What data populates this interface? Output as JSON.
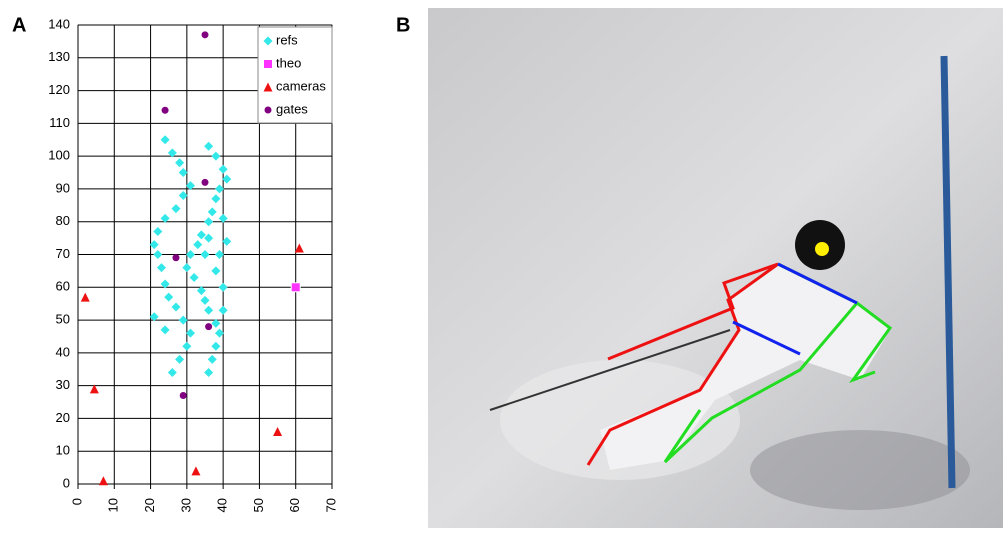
{
  "panels": [
    "A",
    "B"
  ],
  "chart_data": {
    "type": "scatter",
    "xlim": [
      0,
      70
    ],
    "xticks": [
      0,
      10,
      20,
      30,
      40,
      50,
      60,
      70
    ],
    "ylim": [
      0,
      140
    ],
    "yticks": [
      0,
      10,
      20,
      30,
      40,
      50,
      60,
      70,
      80,
      90,
      100,
      110,
      120,
      130,
      140
    ],
    "grid": true,
    "legend": "top-right",
    "series": [
      {
        "name": "refs",
        "color": "#33e8e8",
        "marker": "diamond",
        "x": [
          24,
          26,
          28,
          29,
          31,
          29,
          27,
          24,
          22,
          21,
          22,
          23,
          24,
          25,
          27,
          29,
          31,
          30,
          28,
          26,
          21,
          24,
          36,
          38,
          40,
          41,
          39,
          38,
          37,
          36,
          34,
          33,
          31,
          30,
          32,
          34,
          35,
          36,
          38,
          39,
          38,
          37,
          36,
          40,
          41,
          39,
          38,
          40,
          40,
          36,
          35
        ],
        "values": [
          105,
          101,
          98,
          95,
          91,
          88,
          84,
          81,
          77,
          73,
          70,
          66,
          61,
          57,
          54,
          50,
          46,
          42,
          38,
          34,
          51,
          47,
          103,
          100,
          96,
          93,
          90,
          87,
          83,
          80,
          76,
          73,
          70,
          66,
          63,
          59,
          56,
          53,
          49,
          46,
          42,
          38,
          34,
          81,
          74,
          70,
          65,
          60,
          53,
          75,
          70
        ]
      },
      {
        "name": "theo",
        "color": "#ff33ff",
        "marker": "square",
        "x": [
          60
        ],
        "values": [
          60
        ]
      },
      {
        "name": "cameras",
        "color": "#ee1111",
        "marker": "triangle",
        "x": [
          2,
          4.5,
          7,
          32.5,
          55,
          61
        ],
        "values": [
          57,
          29,
          1,
          4,
          16,
          72
        ]
      },
      {
        "name": "gates",
        "color": "#800080",
        "marker": "circle",
        "x": [
          35,
          24,
          35,
          27,
          36,
          29
        ],
        "values": [
          137,
          114,
          92,
          69,
          48,
          27
        ]
      }
    ]
  }
}
